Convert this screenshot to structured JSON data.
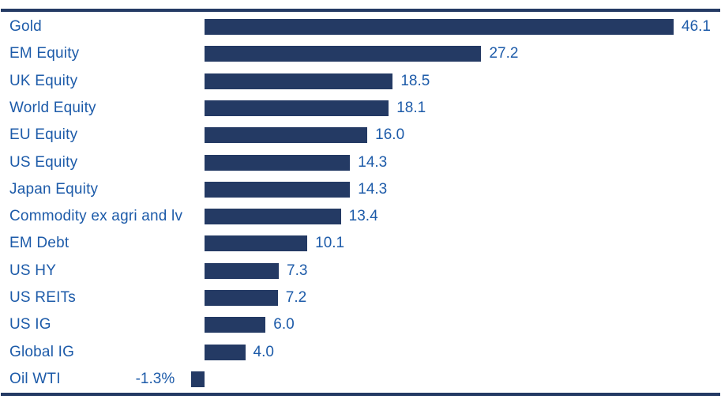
{
  "chart_data": {
    "type": "bar",
    "orientation": "horizontal",
    "title": "",
    "xlabel": "",
    "ylabel": "",
    "grid": false,
    "legend": false,
    "xlim": [
      -1.3,
      46.1
    ],
    "categories": [
      "Gold",
      "EM Equity",
      "UK Equity",
      "World Equity",
      "EU Equity",
      "US Equity",
      "Japan Equity",
      "Commodity ex agri and lv",
      "EM Debt",
      "US HY",
      "US REITs",
      "US IG",
      "Global IG",
      "Oil WTI"
    ],
    "values": [
      46.1,
      27.2,
      18.5,
      18.1,
      16.0,
      14.3,
      14.3,
      13.4,
      10.1,
      7.3,
      7.2,
      6.0,
      4.0,
      -1.3
    ],
    "value_labels": [
      "46.1",
      "27.2",
      "18.5",
      "18.1",
      "16.0",
      "14.3",
      "14.3",
      "13.4",
      "10.1",
      "7.3",
      "7.2",
      "6.0",
      "4.0",
      "-1.3%"
    ]
  },
  "colors": {
    "bar": "#243a64",
    "text": "#1d5ba9",
    "rule": "#243a64",
    "background": "#ffffff"
  }
}
